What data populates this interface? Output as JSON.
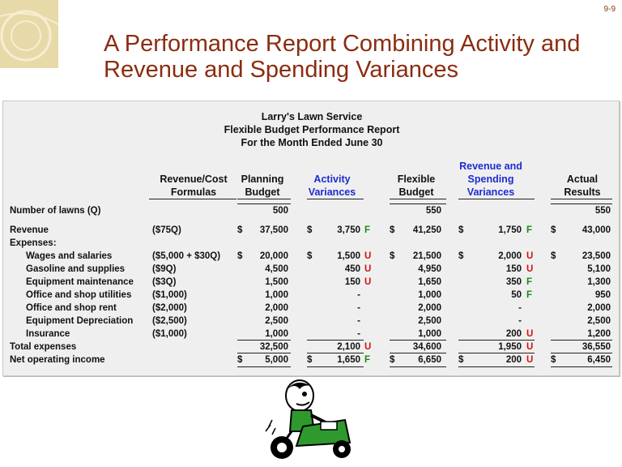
{
  "slide_number": "9-9",
  "title": "A Performance Report Combining Activity and Revenue and Spending Variances",
  "report": {
    "company": "Larry's Lawn Service",
    "report_name": "Flexible Budget Performance Report",
    "period": "For the Month Ended June 30"
  },
  "columns": {
    "formulas": [
      "Revenue/Cost",
      "Formulas"
    ],
    "planning": [
      "Planning",
      "Budget"
    ],
    "activity": [
      "Activity",
      "Variances"
    ],
    "flexible": [
      "Flexible",
      "Budget"
    ],
    "spending": [
      "Revenue and",
      "Spending",
      "Variances"
    ],
    "actual": [
      "Actual",
      "Results"
    ]
  },
  "currency_symbol": "$",
  "rows": [
    {
      "label": "Number of lawns (Q)",
      "indent": false,
      "formula": "",
      "planning": "500",
      "activity": "",
      "activity_fu": "",
      "flexible": "550",
      "spending": "",
      "spending_fu": "",
      "actual": "550",
      "dollar": false
    },
    {
      "label": "Revenue",
      "indent": false,
      "formula": "($75Q)",
      "planning": "37,500",
      "activity": "3,750",
      "activity_fu": "F",
      "flexible": "41,250",
      "spending": "1,750",
      "spending_fu": "F",
      "actual": "43,000",
      "dollar": true
    },
    {
      "label": "Expenses:",
      "indent": false,
      "formula": "",
      "planning": "",
      "activity": "",
      "activity_fu": "",
      "flexible": "",
      "spending": "",
      "spending_fu": "",
      "actual": "",
      "dollar": false
    },
    {
      "label": "Wages and salaries",
      "indent": true,
      "formula": "($5,000 + $30Q)",
      "planning": "20,000",
      "activity": "1,500",
      "activity_fu": "U",
      "flexible": "21,500",
      "spending": "2,000",
      "spending_fu": "U",
      "actual": "23,500",
      "dollar": true
    },
    {
      "label": "Gasoline and supplies",
      "indent": true,
      "formula": "($9Q)",
      "planning": "4,500",
      "activity": "450",
      "activity_fu": "U",
      "flexible": "4,950",
      "spending": "150",
      "spending_fu": "U",
      "actual": "5,100",
      "dollar": false
    },
    {
      "label": "Equipment maintenance",
      "indent": true,
      "formula": "($3Q)",
      "planning": "1,500",
      "activity": "150",
      "activity_fu": "U",
      "flexible": "1,650",
      "spending": "350",
      "spending_fu": "F",
      "actual": "1,300",
      "dollar": false
    },
    {
      "label": "Office and shop utilities",
      "indent": true,
      "formula": "($1,000)",
      "planning": "1,000",
      "activity": "-",
      "activity_fu": "",
      "flexible": "1,000",
      "spending": "50",
      "spending_fu": "F",
      "actual": "950",
      "dollar": false
    },
    {
      "label": "Office and shop rent",
      "indent": true,
      "formula": "($2,000)",
      "planning": "2,000",
      "activity": "-",
      "activity_fu": "",
      "flexible": "2,000",
      "spending": "-",
      "spending_fu": "",
      "actual": "2,000",
      "dollar": false
    },
    {
      "label": "Equipment Depreciation",
      "indent": true,
      "formula": "($2,500)",
      "planning": "2,500",
      "activity": "-",
      "activity_fu": "",
      "flexible": "2,500",
      "spending": "-",
      "spending_fu": "",
      "actual": "2,500",
      "dollar": false
    },
    {
      "label": "Insurance",
      "indent": true,
      "formula": "($1,000)",
      "planning": "1,000",
      "activity": "-",
      "activity_fu": "",
      "flexible": "1,000",
      "spending": "200",
      "spending_fu": "U",
      "actual": "1,200",
      "dollar": false
    },
    {
      "label": "Total expenses",
      "indent": false,
      "formula": "",
      "planning": "32,500",
      "activity": "2,100",
      "activity_fu": "U",
      "flexible": "34,600",
      "spending": "1,950",
      "spending_fu": "U",
      "actual": "36,550",
      "dollar": false
    },
    {
      "label": "Net operating income",
      "indent": false,
      "formula": "",
      "planning": "5,000",
      "activity": "1,650",
      "activity_fu": "F",
      "flexible": "6,650",
      "spending": "200",
      "spending_fu": "U",
      "actual": "6,450",
      "dollar": true
    }
  ],
  "colors": {
    "title": "#8b2c10",
    "header_blue": "#1f2bd1",
    "favorable": "#148c14",
    "unfavorable": "#d41010",
    "panel_bg": "#efefef"
  }
}
